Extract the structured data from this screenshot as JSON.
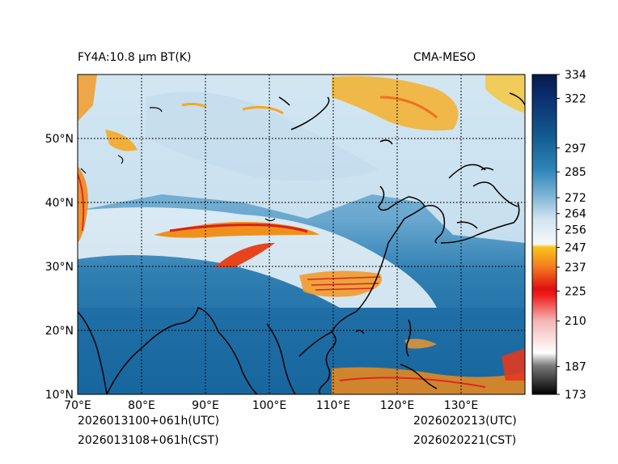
{
  "title": {
    "left": "FY4A:10.8 µm BT(K)",
    "right": "CMA-MESO"
  },
  "map": {
    "lon_range": [
      70,
      140
    ],
    "lat_range": [
      10,
      60
    ],
    "lon_ticks": [
      {
        "value": 70,
        "label": "70°E"
      },
      {
        "value": 80,
        "label": "80°E"
      },
      {
        "value": 90,
        "label": "90°E"
      },
      {
        "value": 100,
        "label": "100°E"
      },
      {
        "value": 110,
        "label": "110°E"
      },
      {
        "value": 120,
        "label": "120°E"
      },
      {
        "value": 130,
        "label": "130°E"
      }
    ],
    "lat_ticks": [
      {
        "value": 10,
        "label": "10°N"
      },
      {
        "value": 20,
        "label": "20°N"
      },
      {
        "value": 30,
        "label": "30°N"
      },
      {
        "value": 40,
        "label": "40°N"
      },
      {
        "value": 50,
        "label": "50°N"
      }
    ],
    "gridlines": "dotted"
  },
  "colorbar": {
    "min": 173,
    "max": 334,
    "ticks": [
      173,
      187,
      210,
      225,
      237,
      247,
      256,
      264,
      272,
      285,
      297,
      322,
      334
    ]
  },
  "footer": {
    "init_utc": "2026013100+061h(UTC)",
    "init_cst": "2026013108+061h(CST)",
    "valid_utc": "2026020213(UTC)",
    "valid_cst": "2026020221(CST)"
  },
  "colors": {
    "ocean": "#1e6fa6",
    "cloud_cold": "#e8f2f8",
    "cold_top_orange": "#f08a1a",
    "cold_top_red": "#d81f1f"
  }
}
